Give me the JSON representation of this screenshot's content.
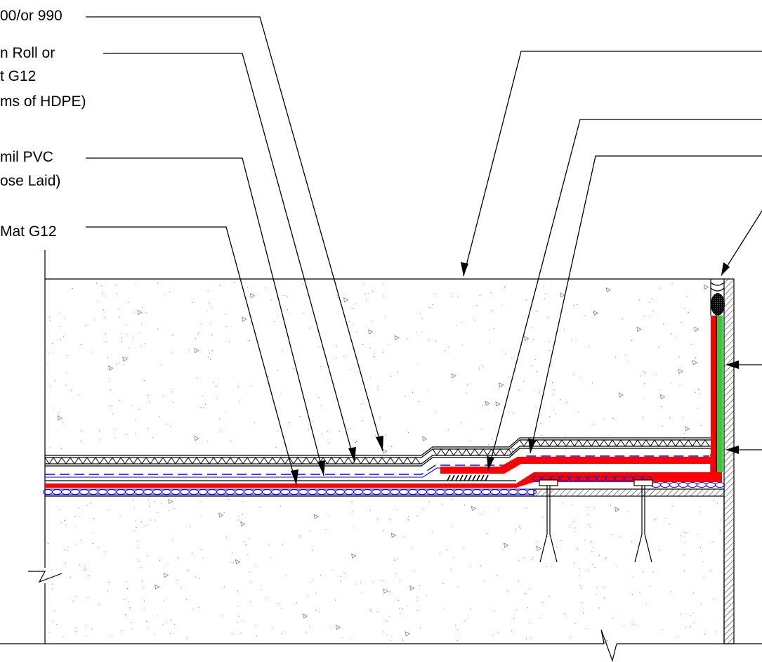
{
  "callouts": {
    "item_1": "00/or 990",
    "item_2a": "n Roll or",
    "item_2b": "t  G12",
    "item_2c": "ms of HDPE)",
    "item_3a": "mil PVC",
    "item_3b": "ose Laid)",
    "item_4": "Mat  G12"
  },
  "colors": {
    "membrane": "#ff0000",
    "blue_line": "#0000ee",
    "green_strip": "#33cc33",
    "concrete_speckle": "#8c8c8c",
    "line": "#000000"
  }
}
